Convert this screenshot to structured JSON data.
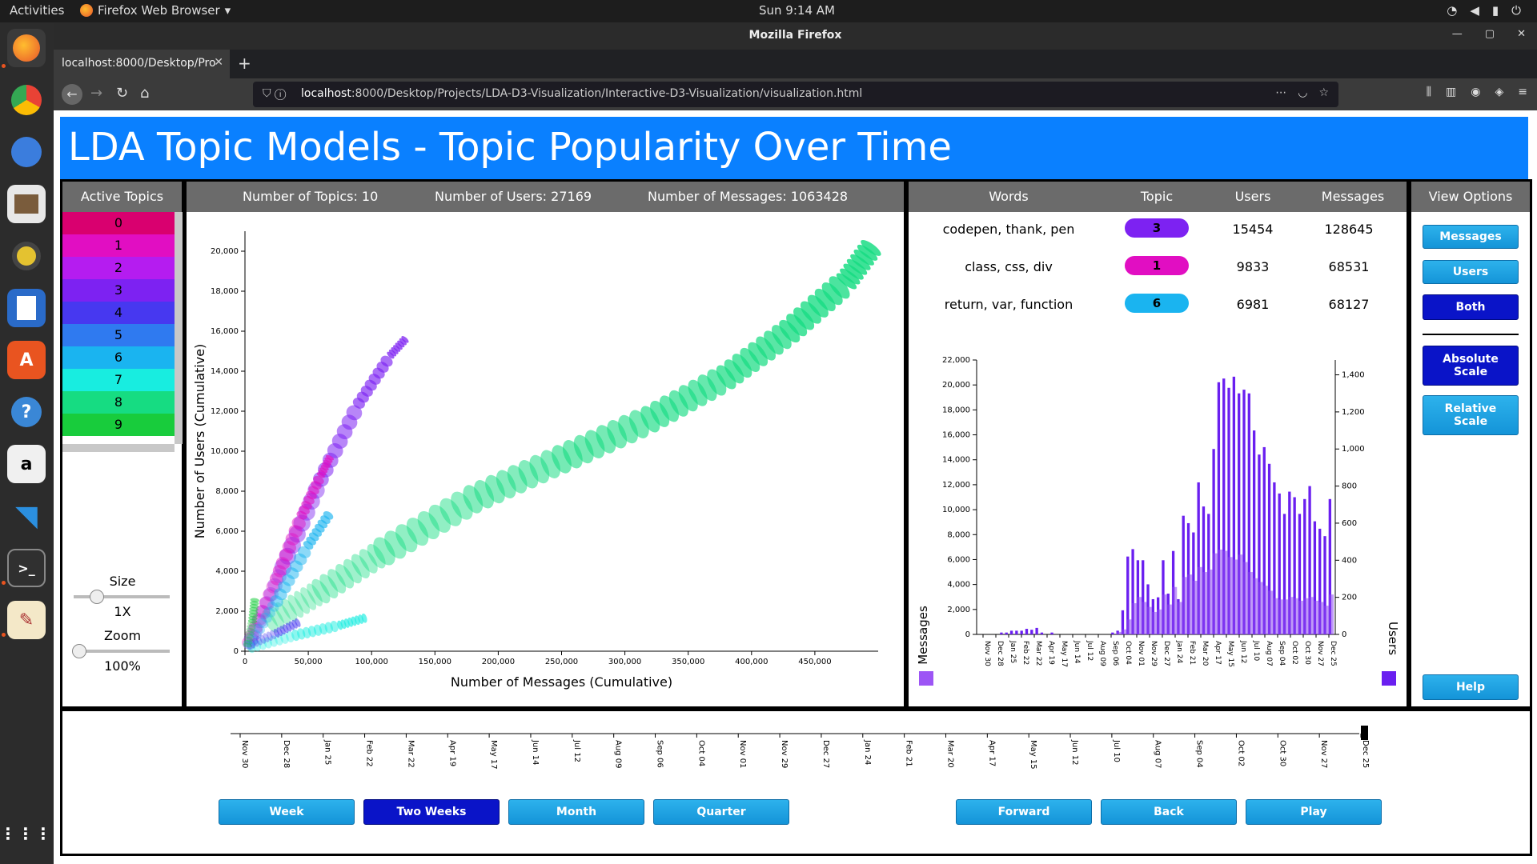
{
  "os": {
    "activities": "Activities",
    "app_name": "Firefox Web Browser",
    "clock": "Sun  9:14 AM"
  },
  "browser": {
    "window_title": "Mozilla Firefox",
    "tab_title": "localhost:8000/Desktop/Pro",
    "url_host": "localhost",
    "url_rest": ":8000/Desktop/Projects/LDA-D3-Visualization/Interactive-D3-Visualization/visualization.html"
  },
  "page": {
    "title": "LDA Topic Models - Topic Popularity Over Time",
    "active_topics_header": "Active Topics",
    "topics": [
      {
        "label": "0",
        "color": "#d9006f"
      },
      {
        "label": "1",
        "color": "#e10ec2"
      },
      {
        "label": "2",
        "color": "#b51cf0"
      },
      {
        "label": "3",
        "color": "#7d22f2"
      },
      {
        "label": "4",
        "color": "#4738f0"
      },
      {
        "label": "5",
        "color": "#2f7af0"
      },
      {
        "label": "6",
        "color": "#1ab4f0"
      },
      {
        "label": "7",
        "color": "#18ede0"
      },
      {
        "label": "8",
        "color": "#16dc82"
      },
      {
        "label": "9",
        "color": "#18cc3c"
      }
    ],
    "size_label": "Size",
    "size_value": "1X",
    "zoom_label": "Zoom",
    "zoom_value": "100%",
    "stats": {
      "topics": "Number of Topics: 10",
      "users": "Number of Users: 27169",
      "messages": "Number of Messages: 1063428"
    },
    "table_headers": {
      "words": "Words",
      "topic": "Topic",
      "users": "Users",
      "messages": "Messages"
    },
    "table_rows": [
      {
        "words": "codepen, thank, pen",
        "topic": "3",
        "topic_color": "#7d22f2",
        "users": "15454",
        "messages": "128645"
      },
      {
        "words": "class, css, div",
        "topic": "1",
        "topic_color": "#e10ec2",
        "users": "9833",
        "messages": "68531"
      },
      {
        "words": "return, var, function",
        "topic": "6",
        "topic_color": "#1ab4f0",
        "users": "6981",
        "messages": "68127"
      }
    ],
    "view_options_header": "View Options",
    "view_buttons": {
      "messages": "Messages",
      "users": "Users",
      "both": "Both",
      "absolute": "Absolute Scale",
      "relative": "Relative Scale",
      "help": "Help"
    },
    "time_buttons": {
      "week": "Week",
      "two_weeks": "Two Weeks",
      "month": "Month",
      "quarter": "Quarter",
      "forward": "Forward",
      "back": "Back",
      "play": "Play"
    },
    "timeline_ticks": [
      "Nov 30",
      "Dec 28",
      "Jan 25",
      "Feb 22",
      "Mar 22",
      "Apr 19",
      "May 17",
      "Jun 14",
      "Jul 12",
      "Aug 09",
      "Sep 06",
      "Oct 04",
      "Nov 01",
      "Nov 29",
      "Dec 27",
      "Jan 24",
      "Feb 21",
      "Mar 20",
      "Apr 17",
      "May 15",
      "Jun 12",
      "Jul 10",
      "Aug 07",
      "Sep 04",
      "Oct 02",
      "Oct 30",
      "Nov 27",
      "Dec 25"
    ]
  },
  "chart_data": [
    {
      "type": "scatter",
      "xlabel": "Number of Messages (Cumulative)",
      "ylabel": "Number of Users (Cumulative)",
      "xlim": [
        0,
        500000
      ],
      "ylim": [
        0,
        21000
      ],
      "x_ticks": [
        "0",
        "50,000",
        "100,000",
        "150,000",
        "200,000",
        "250,000",
        "300,000",
        "350,000",
        "400,000",
        "450,000"
      ],
      "y_ticks": [
        "0",
        "2,000",
        "4,000",
        "6,000",
        "8,000",
        "10,000",
        "12,000",
        "14,000",
        "16,000",
        "18,000",
        "20,000"
      ],
      "series": [
        {
          "topic": "8",
          "color": "#16dc82",
          "points": [
            [
              20000,
              1500
            ],
            [
              60000,
              3000
            ],
            [
              110000,
              5000
            ],
            [
              180000,
              7600
            ],
            [
              250000,
              9600
            ],
            [
              320000,
              11600
            ],
            [
              380000,
              13700
            ],
            [
              430000,
              16000
            ],
            [
              475000,
              18500
            ],
            [
              497000,
              20400
            ]
          ]
        },
        {
          "topic": "3",
          "color": "#7d22f2",
          "points": [
            [
              5000,
              600
            ],
            [
              30000,
              4200
            ],
            [
              60000,
              8600
            ],
            [
              90000,
              12400
            ],
            [
              115000,
              14800
            ],
            [
              128000,
              15700
            ]
          ]
        },
        {
          "topic": "1",
          "color": "#e10ec2",
          "points": [
            [
              3000,
              400
            ],
            [
              25000,
              3600
            ],
            [
              45000,
              6800
            ],
            [
              60000,
              8800
            ],
            [
              68000,
              9800
            ]
          ]
        },
        {
          "topic": "6",
          "color": "#1ab4f0",
          "points": [
            [
              3000,
              300
            ],
            [
              25000,
              2500
            ],
            [
              50000,
              5300
            ],
            [
              68000,
              7000
            ]
          ]
        },
        {
          "topic": "7",
          "color": "#18ede0",
          "points": [
            [
              5000,
              200
            ],
            [
              40000,
              800
            ],
            [
              75000,
              1300
            ],
            [
              97000,
              1700
            ]
          ]
        },
        {
          "topic": "4",
          "color": "#4738f0",
          "points": [
            [
              3000,
              300
            ],
            [
              25000,
              900
            ],
            [
              44000,
              1500
            ]
          ]
        },
        {
          "topic": "9",
          "color": "#18cc3c",
          "points": [
            [
              2000,
              300
            ],
            [
              6000,
              1500
            ],
            [
              8000,
              2700
            ]
          ]
        }
      ]
    },
    {
      "type": "bar",
      "series_left_name": "Messages",
      "series_right_name": "Users",
      "left_ticks": [
        "0",
        "2,000",
        "4,000",
        "6,000",
        "8,000",
        "10,000",
        "12,000",
        "14,000",
        "16,000",
        "18,000",
        "20,000",
        "22,000"
      ],
      "right_ticks": [
        "0",
        "200",
        "400",
        "600",
        "800",
        "1,000",
        "1,200",
        "1,400"
      ],
      "ylim_left": [
        0,
        22000
      ],
      "ylim_right": [
        0,
        1480
      ],
      "x_ticks": [
        "Nov 30",
        "Dec 28",
        "Jan 25",
        "Feb 22",
        "Mar 22",
        "Apr 19",
        "May 17",
        "Jun 14",
        "Jul 12",
        "Aug 09",
        "Sep 06",
        "Oct 04",
        "Nov 01",
        "Nov 29",
        "Dec 27",
        "Jan 24",
        "Feb 21",
        "Mar 20",
        "Apr 17",
        "May 15",
        "Jun 12",
        "Jul 10",
        "Aug 07",
        "Sep 04",
        "Oct 02",
        "Oct 30",
        "Nov 27",
        "Dec 25"
      ],
      "users_values": [
        0,
        0,
        0,
        0,
        10,
        10,
        20,
        20,
        20,
        30,
        25,
        35,
        10,
        0,
        10,
        0,
        0,
        0,
        0,
        0,
        0,
        0,
        0,
        0,
        0,
        0,
        10,
        20,
        130,
        420,
        460,
        400,
        400,
        270,
        190,
        200,
        400,
        220,
        450,
        190,
        640,
        600,
        550,
        820,
        690,
        650,
        1000,
        1360,
        1380,
        1330,
        1390,
        1300,
        1320,
        1300,
        1100,
        970,
        1010,
        920,
        820,
        760,
        650,
        770,
        740,
        650,
        730,
        800,
        610,
        570,
        530,
        730
      ],
      "messages_values": [
        0,
        0,
        0,
        0,
        0,
        0,
        0,
        0,
        0,
        0,
        0,
        0,
        0,
        0,
        0,
        0,
        0,
        0,
        0,
        0,
        0,
        0,
        0,
        0,
        0,
        0,
        0,
        200,
        400,
        1200,
        2500,
        3000,
        2600,
        2200,
        1800,
        2000,
        3200,
        2400,
        3800,
        2600,
        4600,
        4800,
        4300,
        5400,
        5000,
        5200,
        6500,
        6800,
        6700,
        6200,
        6000,
        6400,
        5800,
        5000,
        4500,
        4200,
        3900,
        3500,
        2900,
        2800,
        2800,
        3000,
        2900,
        2700,
        2900,
        3000,
        2700,
        2600,
        2300,
        3200
      ]
    },
    {
      "type": "timeline",
      "x_ticks": [
        "Nov 30",
        "Dec 28",
        "Jan 25",
        "Feb 22",
        "Mar 22",
        "Apr 19",
        "May 17",
        "Jun 14",
        "Jul 12",
        "Aug 09",
        "Sep 06",
        "Oct 04",
        "Nov 01",
        "Nov 29",
        "Dec 27",
        "Jan 24",
        "Feb 21",
        "Mar 20",
        "Apr 17",
        "May 15",
        "Jun 12",
        "Jul 10",
        "Aug 07",
        "Sep 04",
        "Oct 02",
        "Oct 30",
        "Nov 27",
        "Dec 25"
      ]
    }
  ]
}
